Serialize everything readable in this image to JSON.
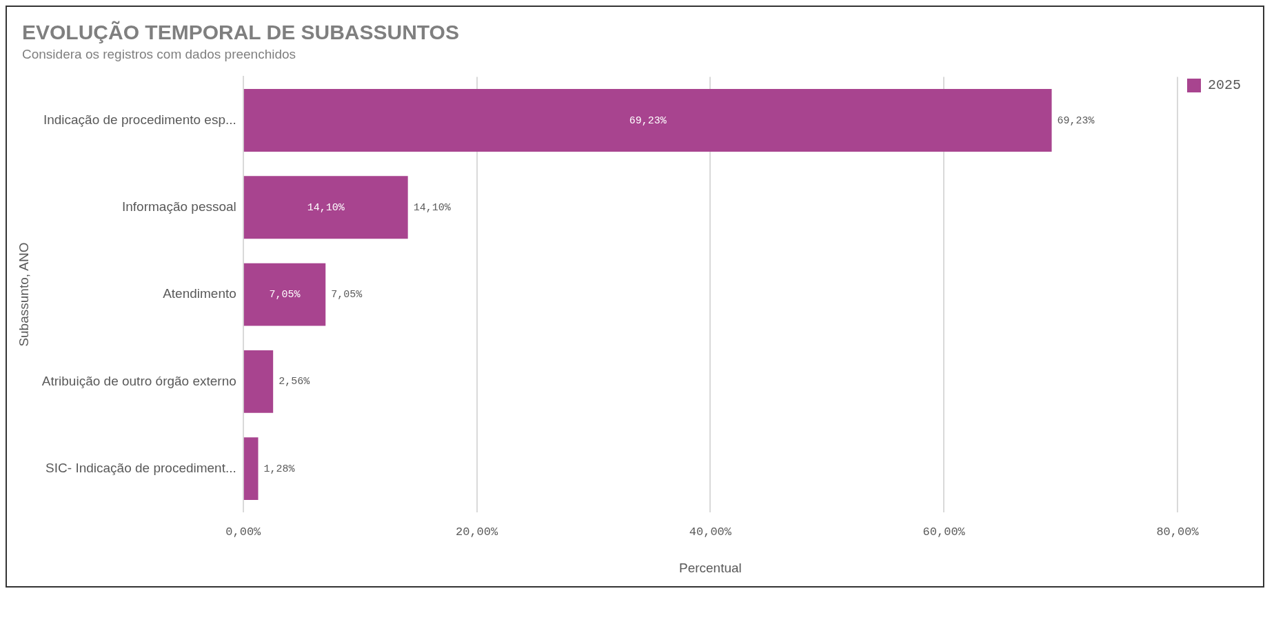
{
  "chart_data": {
    "type": "bar",
    "orientation": "horizontal",
    "title": "EVOLUÇÃO TEMPORAL DE SUBASSUNTOS",
    "subtitle": "Considera os registros com dados preenchidos",
    "xlabel": "Percentual",
    "ylabel": "Subassunto, ANO",
    "categories": [
      "Indicação de procedimento esp...",
      "Informação pessoal",
      "Atendimento",
      "Atribuição de outro órgão externo",
      "SIC- Indicação de procediment..."
    ],
    "series": [
      {
        "name": "2025",
        "color": "#a8448f",
        "values": [
          69.23,
          14.1,
          7.05,
          2.56,
          1.28
        ],
        "value_labels": [
          "69,23%",
          "14,10%",
          "7,05%",
          "2,56%",
          "1,28%"
        ]
      }
    ],
    "xlim": [
      0,
      80
    ],
    "xticks": [
      {
        "value": 0,
        "label": "0,00%"
      },
      {
        "value": 20,
        "label": "20,00%"
      },
      {
        "value": 40,
        "label": "40,00%"
      },
      {
        "value": 60,
        "label": "60,00%"
      },
      {
        "value": 80,
        "label": "80,00%"
      }
    ],
    "grid": "x",
    "legend": "top right"
  }
}
